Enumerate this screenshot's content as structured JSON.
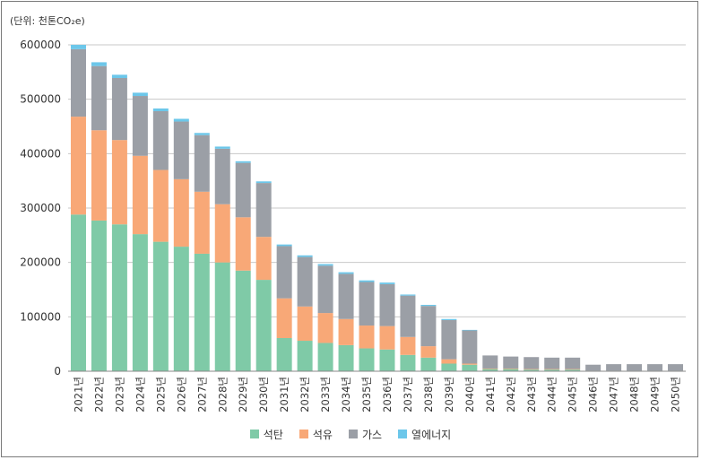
{
  "unit_label": "(단위: 천톤CO₂e)",
  "colors": {
    "coal": "#7fcaa7",
    "oil": "#f8a877",
    "gas": "#9b9fa6",
    "heat": "#6cc7ea",
    "grid": "#c8c8c8",
    "axis": "#888888"
  },
  "chart_data": {
    "type": "bar",
    "stacked": true,
    "title": "",
    "xlabel": "",
    "ylabel": "",
    "ylim": [
      0,
      600000
    ],
    "yticks": [
      0,
      100000,
      200000,
      300000,
      400000,
      500000,
      600000
    ],
    "ytick_labels": [
      "0",
      "100000",
      "200000",
      "300000",
      "400000",
      "500000",
      "600000"
    ],
    "grid": true,
    "legend_position": "bottom",
    "categories": [
      "2021년",
      "2022년",
      "2023년",
      "2024년",
      "2025년",
      "2026년",
      "2027년",
      "2028년",
      "2029년",
      "2030년",
      "2031년",
      "2032년",
      "2033년",
      "2034년",
      "2035년",
      "2036년",
      "2037년",
      "2038년",
      "2039년",
      "2040년",
      "2041년",
      "2042년",
      "2043년",
      "2044년",
      "2045년",
      "2046년",
      "2047년",
      "2048년",
      "2049년",
      "2050년"
    ],
    "series": [
      {
        "name": "석탄",
        "color_key": "coal",
        "values": [
          288000,
          277000,
          270000,
          252000,
          238000,
          229000,
          216000,
          200000,
          185000,
          168000,
          61000,
          56000,
          52000,
          48000,
          42000,
          40000,
          30000,
          25000,
          14000,
          12000,
          4000,
          4000,
          3000,
          3000,
          3000,
          1000,
          1000,
          1000,
          1000,
          1000
        ]
      },
      {
        "name": "석유",
        "color_key": "oil",
        "values": [
          180000,
          166000,
          155000,
          144000,
          132000,
          124000,
          114000,
          107000,
          98000,
          79000,
          73000,
          63000,
          55000,
          48000,
          42000,
          43000,
          33000,
          21000,
          8000,
          2000,
          1000,
          1000,
          1000,
          1000,
          1000,
          0,
          0,
          0,
          0,
          0
        ]
      },
      {
        "name": "가스",
        "color_key": "gas",
        "values": [
          124000,
          118000,
          114000,
          110000,
          108000,
          106000,
          104000,
          102000,
          100000,
          99000,
          96000,
          91000,
          87000,
          83000,
          80000,
          77000,
          76000,
          74000,
          72000,
          61000,
          24000,
          22000,
          22000,
          21000,
          21000,
          11000,
          12000,
          12000,
          12000,
          12000
        ]
      },
      {
        "name": "열에너지",
        "color_key": "heat",
        "values": [
          8000,
          7000,
          6000,
          6000,
          5000,
          5000,
          4000,
          4000,
          3000,
          3000,
          3000,
          3000,
          3000,
          3000,
          3000,
          3000,
          2000,
          2000,
          2000,
          1000,
          0,
          0,
          0,
          0,
          0,
          0,
          0,
          0,
          0,
          0
        ]
      }
    ]
  }
}
